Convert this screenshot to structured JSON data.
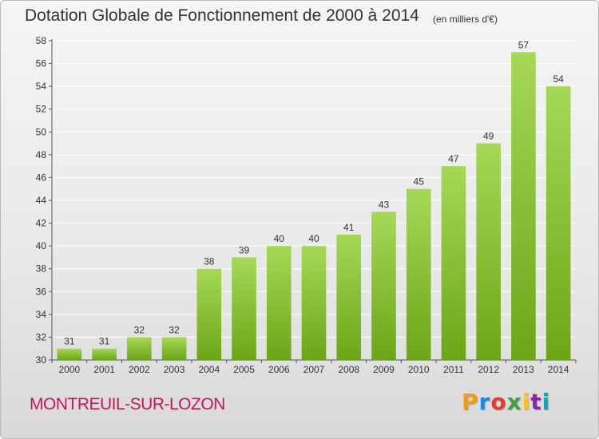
{
  "header": {
    "title": "Dotation Globale de Fonctionnement de 2000 à 2014",
    "unit": "(en milliers d'€)"
  },
  "footer": {
    "commune": "MONTREUIL-SUR-LOZON",
    "brand_letters": [
      "P",
      "r",
      "o",
      "x",
      "i",
      "t",
      "i"
    ],
    "brand_colors": [
      "#f39c12",
      "#1e88e5",
      "#e53935",
      "#43a047",
      "#fbc02d",
      "#8e24aa",
      "#00acc1"
    ]
  },
  "colors": {
    "bar_light": "#a6d857",
    "bar_dark": "#6ba617",
    "text": "#333333",
    "commune": "#c2185b",
    "grid": "#ffffff"
  },
  "chart_data": {
    "type": "bar",
    "categories": [
      "2000",
      "2001",
      "2002",
      "2003",
      "2004",
      "2005",
      "2006",
      "2007",
      "2008",
      "2009",
      "2010",
      "2011",
      "2012",
      "2013",
      "2014"
    ],
    "values": [
      31,
      31,
      32,
      32,
      38,
      39,
      40,
      40,
      41,
      43,
      45,
      47,
      49,
      57,
      54
    ],
    "title": "Dotation Globale de Fonctionnement de 2000 à 2014",
    "xlabel": "",
    "ylabel": "",
    "ylim": [
      30,
      58
    ],
    "yticks": [
      30,
      32,
      34,
      36,
      38,
      40,
      42,
      44,
      46,
      48,
      50,
      52,
      54,
      56,
      58
    ],
    "grid": true,
    "data_labels": true
  }
}
